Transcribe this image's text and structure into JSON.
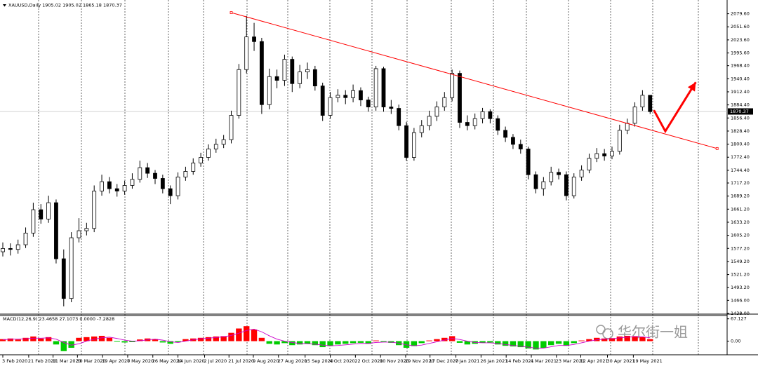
{
  "chart_data": {
    "type": "candlestick",
    "title": "XAUUSD,Daily  1905.02 1905.02 1865.18 1870.37",
    "watermark": "华尔街一姐",
    "ylim": [
      1438,
      2106
    ],
    "yticks": [
      {
        "value": 2079.6,
        "label": "2079.60"
      },
      {
        "value": 2051.6,
        "label": "2051.60"
      },
      {
        "value": 2023.6,
        "label": "2023.60"
      },
      {
        "value": 1995.6,
        "label": "1995.60"
      },
      {
        "value": 1968.4,
        "label": "1968.40"
      },
      {
        "value": 1940.4,
        "label": "1940.40"
      },
      {
        "value": 1912.4,
        "label": "1912.40"
      },
      {
        "value": 1884.4,
        "label": "1884.40"
      },
      {
        "value": 1856.4,
        "label": "1856.40"
      },
      {
        "value": 1828.4,
        "label": "1828.40"
      },
      {
        "value": 1800.4,
        "label": "1800.40"
      },
      {
        "value": 1772.4,
        "label": "1772.40"
      },
      {
        "value": 1744.4,
        "label": "1744.40"
      },
      {
        "value": 1717.2,
        "label": "1717.20"
      },
      {
        "value": 1689.2,
        "label": "1689.20"
      },
      {
        "value": 1661.2,
        "label": "1661.20"
      },
      {
        "value": 1633.2,
        "label": "1633.20"
      },
      {
        "value": 1605.2,
        "label": "1605.20"
      },
      {
        "value": 1577.2,
        "label": "1577.20"
      },
      {
        "value": 1549.2,
        "label": "1549.20"
      },
      {
        "value": 1521.2,
        "label": "1521.20"
      },
      {
        "value": 1493.2,
        "label": "1493.20"
      },
      {
        "value": 1466,
        "label": "1466.00"
      },
      {
        "value": 1438,
        "label": "1438.00"
      }
    ],
    "current_price": 1870.37,
    "xticks": [
      {
        "value": 0,
        "label": "3 Feb 2020"
      },
      {
        "value": 3.4,
        "label": "21 Feb 2020"
      },
      {
        "value": 6.6,
        "label": "11 Mar 2020"
      },
      {
        "value": 9.8,
        "label": "30 Mar 2020"
      },
      {
        "value": 13.1,
        "label": "19 Apr 2020"
      },
      {
        "value": 16.4,
        "label": "7 May 2020"
      },
      {
        "value": 19.7,
        "label": "26 May 2020"
      },
      {
        "value": 23,
        "label": "14 Jun 2020"
      },
      {
        "value": 26.5,
        "label": "2 Jul 2020"
      },
      {
        "value": 29.7,
        "label": "21 Jul 2020"
      },
      {
        "value": 32.9,
        "label": "9 Aug 2020"
      },
      {
        "value": 36.2,
        "label": "27 Aug 2020"
      },
      {
        "value": 39.7,
        "label": "15 Sep 2020"
      },
      {
        "value": 43,
        "label": "4 Oct 2020"
      },
      {
        "value": 46.3,
        "label": "22 Oct 2020"
      },
      {
        "value": 49.6,
        "label": "10 Nov 2020"
      },
      {
        "value": 52.9,
        "label": "29 Nov 2020"
      },
      {
        "value": 56.1,
        "label": "17 Dec 2020"
      },
      {
        "value": 59.5,
        "label": "7 Jan 2021"
      },
      {
        "value": 62.8,
        "label": "26 Jan 2021"
      },
      {
        "value": 66.1,
        "label": "14 Feb 2021"
      },
      {
        "value": 69.4,
        "label": "4 Mar 2021"
      },
      {
        "value": 72.7,
        "label": "23 Mar 2021"
      },
      {
        "value": 75.9,
        "label": "12 Apr 2021"
      },
      {
        "value": 79.4,
        "label": "30 Apr 2021"
      },
      {
        "value": 82.8,
        "label": "19 May 2021"
      }
    ],
    "open": [
      1570,
      1577,
      1575,
      1585,
      1610,
      1660,
      1640,
      1675,
      1555,
      1470,
      1600,
      1615,
      1620,
      1700,
      1720,
      1705,
      1700,
      1712,
      1725,
      1750,
      1738,
      1727,
      1705,
      1690,
      1730,
      1742,
      1760,
      1772,
      1790,
      1800,
      1810,
      1862,
      1960,
      2030,
      2020,
      1885,
      1945,
      1937,
      1982,
      1930,
      1955,
      1960,
      1925,
      1862,
      1900,
      1905,
      1900,
      1915,
      1895,
      1880,
      1962,
      1880,
      1877,
      1840,
      1772,
      1825,
      1840,
      1860,
      1880,
      1900,
      1952,
      1847,
      1840,
      1855,
      1870,
      1855,
      1830,
      1815,
      1800,
      1790,
      1735,
      1705,
      1720,
      1740,
      1735,
      1690,
      1730,
      1745,
      1770,
      1780,
      1775,
      1785,
      1830,
      1845,
      1880,
      1905
    ],
    "high": [
      1590,
      1588,
      1596,
      1622,
      1675,
      1672,
      1690,
      1682,
      1575,
      1612,
      1642,
      1632,
      1712,
      1735,
      1730,
      1715,
      1722,
      1738,
      1765,
      1760,
      1745,
      1735,
      1712,
      1740,
      1752,
      1770,
      1782,
      1800,
      1812,
      1820,
      1872,
      1972,
      2075,
      2060,
      2028,
      1962,
      1960,
      1992,
      1988,
      1970,
      1975,
      1968,
      1932,
      1912,
      1918,
      1916,
      1928,
      1922,
      1902,
      1968,
      1966,
      1895,
      1885,
      1848,
      1835,
      1852,
      1872,
      1892,
      1912,
      1960,
      1958,
      1862,
      1866,
      1878,
      1875,
      1862,
      1838,
      1822,
      1810,
      1795,
      1742,
      1730,
      1752,
      1748,
      1742,
      1738,
      1755,
      1780,
      1792,
      1790,
      1795,
      1842,
      1855,
      1890,
      1916,
      1905
    ],
    "low": [
      1560,
      1562,
      1566,
      1578,
      1602,
      1630,
      1632,
      1545,
      1453,
      1462,
      1590,
      1605,
      1612,
      1690,
      1695,
      1688,
      1692,
      1705,
      1718,
      1728,
      1715,
      1695,
      1672,
      1682,
      1722,
      1735,
      1752,
      1765,
      1782,
      1792,
      1802,
      1855,
      1952,
      2000,
      1865,
      1875,
      1920,
      1925,
      1912,
      1920,
      1940,
      1915,
      1850,
      1855,
      1890,
      1886,
      1890,
      1882,
      1870,
      1872,
      1870,
      1865,
      1830,
      1765,
      1765,
      1815,
      1830,
      1850,
      1872,
      1892,
      1835,
      1830,
      1832,
      1845,
      1845,
      1820,
      1805,
      1790,
      1780,
      1725,
      1695,
      1690,
      1712,
      1725,
      1680,
      1684,
      1722,
      1738,
      1762,
      1765,
      1768,
      1778,
      1822,
      1838,
      1872,
      1865
    ],
    "close": [
      1577,
      1575,
      1585,
      1610,
      1660,
      1640,
      1675,
      1555,
      1470,
      1600,
      1615,
      1620,
      1700,
      1720,
      1705,
      1700,
      1712,
      1725,
      1750,
      1738,
      1727,
      1705,
      1690,
      1730,
      1742,
      1760,
      1772,
      1790,
      1800,
      1810,
      1862,
      1960,
      2030,
      2020,
      1885,
      1945,
      1937,
      1982,
      1930,
      1955,
      1960,
      1925,
      1862,
      1900,
      1905,
      1900,
      1915,
      1895,
      1880,
      1962,
      1880,
      1877,
      1840,
      1772,
      1825,
      1840,
      1860,
      1880,
      1900,
      1952,
      1847,
      1840,
      1855,
      1870,
      1855,
      1830,
      1815,
      1800,
      1790,
      1735,
      1705,
      1720,
      1740,
      1735,
      1690,
      1730,
      1745,
      1770,
      1780,
      1775,
      1785,
      1830,
      1845,
      1880,
      1905,
      1870
    ],
    "trendline": {
      "color": "#ff0000",
      "x": [
        30,
        93.8
      ],
      "y": [
        2082,
        1791
      ]
    },
    "arrow": {
      "color": "#ff0000",
      "x": [
        85.5,
        87,
        91
      ],
      "y": [
        1873,
        1828,
        1933
      ]
    },
    "macd": {
      "label": "MACD(12,26,9) 23.4658 27.1073 0.0000 -7.2828",
      "ylim": [
        -41,
        77
      ],
      "yticks": [
        67.127,
        {
          "value": 0,
          "label": "0.00"
        }
      ],
      "up_color": "#ff0000",
      "down_color": "#00cc00",
      "signal_color": "#cc00cc",
      "histogram": [
        6,
        8,
        5,
        10,
        14,
        8,
        12,
        -10,
        -30,
        -20,
        10,
        12,
        14,
        16,
        10,
        -2,
        -4,
        -3,
        5,
        8,
        6,
        -4,
        -8,
        -3,
        6,
        8,
        10,
        12,
        14,
        15,
        25,
        38,
        45,
        35,
        10,
        -8,
        -10,
        -6,
        -12,
        -10,
        -8,
        -12,
        -18,
        -15,
        -10,
        -8,
        -6,
        -5,
        -8,
        2,
        -3,
        -5,
        -12,
        -20,
        -15,
        -6,
        2,
        6,
        10,
        15,
        -5,
        -10,
        -8,
        -5,
        -4,
        -10,
        -14,
        -16,
        -18,
        -22,
        -25,
        -20,
        -12,
        -8,
        -14,
        -6,
        2,
        6,
        10,
        8,
        9,
        14,
        16,
        15,
        12,
        6
      ],
      "signal": [
        4,
        6,
        6,
        7,
        9,
        9,
        10,
        6,
        -4,
        -12,
        -8,
        0,
        6,
        10,
        12,
        8,
        3,
        0,
        1,
        4,
        6,
        3,
        -2,
        -4,
        0,
        4,
        7,
        9,
        11,
        13,
        17,
        24,
        32,
        36,
        28,
        16,
        6,
        0,
        -4,
        -7,
        -8,
        -9,
        -12,
        -14,
        -13,
        -11,
        -9,
        -7,
        -7,
        -4,
        -3,
        -3,
        -6,
        -11,
        -14,
        -12,
        -7,
        -2,
        3,
        8,
        5,
        0,
        -4,
        -5,
        -5,
        -7,
        -10,
        -13,
        -15,
        -18,
        -21,
        -21,
        -17,
        -13,
        -13,
        -10,
        -5,
        0,
        4,
        6,
        7,
        10,
        12,
        13,
        13,
        10
      ]
    }
  }
}
